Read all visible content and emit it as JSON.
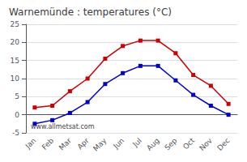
{
  "chart_data": {
    "type": "line",
    "title": "Warnemünde : temperatures (°C)",
    "categories": [
      "Jan",
      "Feb",
      "Mar",
      "Apr",
      "May",
      "Jun",
      "Jul",
      "Aug",
      "Sep",
      "Oct",
      "Nov",
      "Dec"
    ],
    "series": [
      {
        "color": "#cc0000",
        "marker": "square",
        "values": [
          2.0,
          2.5,
          6.5,
          10.0,
          15.5,
          19.0,
          20.5,
          20.5,
          17.0,
          11.0,
          8.0,
          3.0
        ]
      },
      {
        "color": "#0000cc",
        "marker": "square",
        "values": [
          -2.5,
          -1.5,
          0.5,
          3.5,
          8.5,
          11.5,
          13.5,
          13.5,
          9.5,
          5.5,
          2.5,
          0.0
        ]
      }
    ],
    "ylim": [
      -5,
      25
    ],
    "yticks": [
      -5,
      0,
      5,
      10,
      15,
      20,
      25
    ],
    "grid": true,
    "annotations": [
      "www.allmetsat.com"
    ]
  }
}
